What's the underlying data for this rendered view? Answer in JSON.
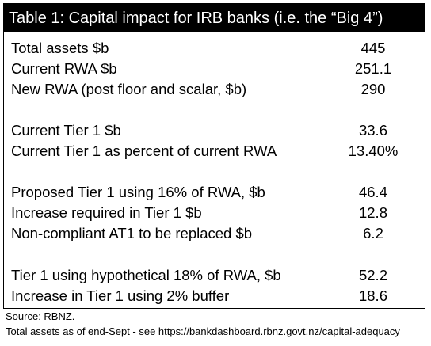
{
  "table": {
    "title": "Table 1: Capital impact  for IRB banks (i.e. the “Big 4”)",
    "rows": [
      {
        "label": "Total assets $b",
        "value": "445"
      },
      {
        "label": "Current RWA $b",
        "value": "251.1"
      },
      {
        "label": "New RWA (post floor and scalar, $b)",
        "value": "290"
      },
      {
        "label": "Current Tier 1 $b",
        "value": "33.6"
      },
      {
        "label": "Current Tier 1 as percent of current RWA",
        "value": "13.40%"
      },
      {
        "label": "Proposed Tier 1 using 16% of RWA, $b",
        "value": "46.4"
      },
      {
        "label": "Increase required in Tier 1 $b",
        "value": "12.8"
      },
      {
        "label": "Non-compliant AT1 to be replaced $b",
        "value": "6.2"
      },
      {
        "label": "Tier 1 using hypothetical 18% of RWA, $b",
        "value": "52.2"
      },
      {
        "label": "Increase in Tier 1 using 2% buffer",
        "value": "18.6"
      }
    ]
  },
  "footer": {
    "source": "Source: RBNZ.",
    "note": "Total assets as of end-Sept - see https://bankdashboard.rbnz.govt.nz/capital-adequacy"
  }
}
